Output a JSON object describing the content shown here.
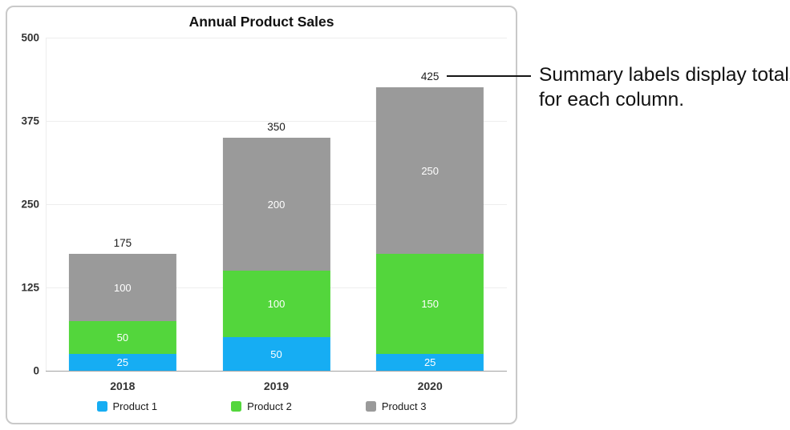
{
  "chart_data": {
    "type": "bar",
    "stacked": true,
    "title": "Annual Product Sales",
    "categories": [
      "2018",
      "2019",
      "2020"
    ],
    "series": [
      {
        "name": "Product 1",
        "color": "#16adf3",
        "values": [
          25,
          50,
          25
        ]
      },
      {
        "name": "Product 2",
        "color": "#53d63c",
        "values": [
          50,
          100,
          150
        ]
      },
      {
        "name": "Product 3",
        "color": "#9a9a9a",
        "values": [
          100,
          200,
          250
        ]
      }
    ],
    "totals": [
      175,
      350,
      425
    ],
    "y_ticks": [
      0,
      125,
      250,
      375,
      500
    ],
    "ylim": [
      0,
      500
    ],
    "grid": true,
    "legend_position": "bottom"
  },
  "annotation": {
    "text": "Summary labels display totals for each column."
  }
}
